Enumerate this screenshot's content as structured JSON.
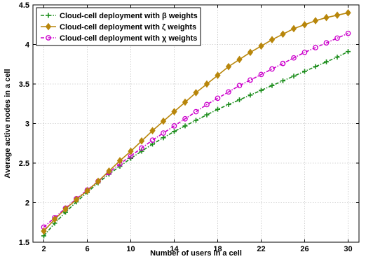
{
  "chart_data": {
    "type": "line",
    "xlabel": "Number of users in a cell",
    "ylabel": "Average active nodes in a cell",
    "xlim": [
      1,
      31
    ],
    "ylim": [
      1.5,
      4.5
    ],
    "xticks": [
      2,
      6,
      10,
      14,
      18,
      22,
      26,
      30
    ],
    "yticks": [
      1.5,
      2,
      2.5,
      3,
      3.5,
      4,
      4.5
    ],
    "grid": true,
    "legend_position": "top-left",
    "x": [
      2,
      3,
      4,
      5,
      6,
      7,
      8,
      9,
      10,
      11,
      12,
      13,
      14,
      15,
      16,
      17,
      18,
      19,
      20,
      21,
      22,
      23,
      24,
      25,
      26,
      27,
      28,
      29,
      30
    ],
    "series": [
      {
        "name": "Cloud-cell deployment with β weights",
        "color": "#1a8c1a",
        "marker": "plus",
        "line": "dash-dot",
        "values": [
          1.58,
          1.74,
          1.88,
          2.01,
          2.13,
          2.25,
          2.36,
          2.46,
          2.56,
          2.65,
          2.74,
          2.82,
          2.9,
          2.97,
          3.04,
          3.11,
          3.18,
          3.24,
          3.3,
          3.36,
          3.42,
          3.48,
          3.54,
          3.6,
          3.66,
          3.72,
          3.78,
          3.84,
          3.91
        ]
      },
      {
        "name": "Cloud-cell deployment with ζ weights",
        "color": "#b8860b",
        "marker": "diamond",
        "line": "solid",
        "values": [
          1.64,
          1.79,
          1.92,
          2.04,
          2.15,
          2.27,
          2.4,
          2.53,
          2.65,
          2.78,
          2.91,
          3.03,
          3.15,
          3.27,
          3.39,
          3.5,
          3.61,
          3.72,
          3.81,
          3.9,
          3.98,
          4.06,
          4.13,
          4.2,
          4.25,
          4.3,
          4.34,
          4.37,
          4.4
        ]
      },
      {
        "name": "Cloud-cell deployment with χ weights",
        "color": "#cc00cc",
        "marker": "circle",
        "line": "dash-dot",
        "values": [
          1.69,
          1.81,
          1.93,
          2.05,
          2.16,
          2.27,
          2.38,
          2.49,
          2.59,
          2.69,
          2.79,
          2.88,
          2.97,
          3.06,
          3.15,
          3.24,
          3.32,
          3.4,
          3.48,
          3.55,
          3.62,
          3.69,
          3.76,
          3.83,
          3.9,
          3.96,
          4.02,
          4.08,
          4.14
        ]
      }
    ]
  }
}
